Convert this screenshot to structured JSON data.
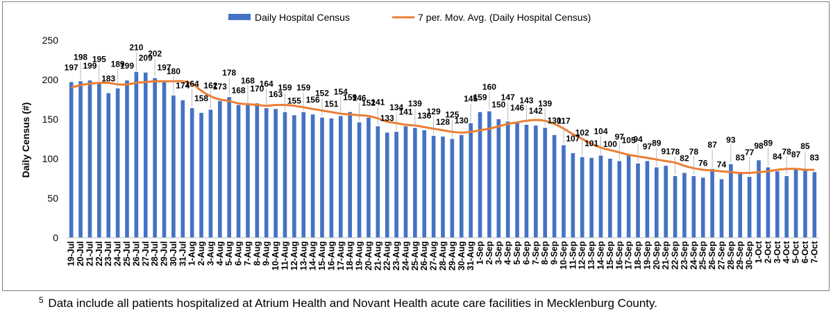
{
  "chart_data": {
    "type": "bar",
    "title": "",
    "xlabel": "",
    "ylabel": "Daily Census (#)",
    "ylim": [
      0,
      250
    ],
    "yticks": [
      0,
      50,
      100,
      150,
      200,
      250
    ],
    "grid": false,
    "legend_position": "top",
    "categories": [
      "19-Jul",
      "20-Jul",
      "21-Jul",
      "22-Jul",
      "23-Jul",
      "24-Jul",
      "25-Jul",
      "26-Jul",
      "27-Jul",
      "28-Jul",
      "29-Jul",
      "30-Jul",
      "31-Jul",
      "1-Aug",
      "2-Aug",
      "3-Aug",
      "4-Aug",
      "5-Aug",
      "6-Aug",
      "7-Aug",
      "8-Aug",
      "9-Aug",
      "10-Aug",
      "11-Aug",
      "12-Aug",
      "13-Aug",
      "14-Aug",
      "15-Aug",
      "16-Aug",
      "17-Aug",
      "18-Aug",
      "19-Aug",
      "20-Aug",
      "21-Aug",
      "22-Aug",
      "23-Aug",
      "24-Aug",
      "25-Aug",
      "26-Aug",
      "27-Aug",
      "28-Aug",
      "29-Aug",
      "30-Aug",
      "31-Aug",
      "1-Sep",
      "2-Sep",
      "3-Sep",
      "4-Sep",
      "5-Sep",
      "6-Sep",
      "7-Sep",
      "8-Sep",
      "9-Sep",
      "10-Sep",
      "11-Sep",
      "12-Sep",
      "13-Sep",
      "14-Sep",
      "15-Sep",
      "16-Sep",
      "17-Sep",
      "18-Sep",
      "19-Sep",
      "20-Sep",
      "21-Sep",
      "22-Sep",
      "23-Sep",
      "24-Sep",
      "25-Sep",
      "26-Sep",
      "27-Sep",
      "28-Sep",
      "29-Sep",
      "30-Sep",
      "1-Oct",
      "2-Oct",
      "3-Oct",
      "4-Oct",
      "5-Oct",
      "6-Oct",
      "7-Oct"
    ],
    "series": [
      {
        "name": "Daily Hospital Census",
        "kind": "bar",
        "color": "#4472C4",
        "values": [
          197,
          198,
          199,
          195,
          183,
          189,
          199,
          210,
          209,
          202,
          197,
          180,
          174,
          164,
          158,
          162,
          173,
          178,
          168,
          168,
          170,
          164,
          163,
          159,
          155,
          159,
          156,
          152,
          151,
          154,
          159,
          146,
          152,
          141,
          133,
          134,
          141,
          139,
          136,
          129,
          128,
          125,
          130,
          145,
          159,
          160,
          150,
          147,
          146,
          143,
          142,
          139,
          130,
          117,
          107,
          102,
          101,
          104,
          100,
          97,
          105,
          94,
          97,
          89,
          91,
          78,
          82,
          78,
          76,
          87,
          74,
          93,
          83,
          77,
          98,
          89,
          84,
          78,
          87,
          85,
          83
        ]
      },
      {
        "name": "7 per. Mov. Avg. (Daily Hospital Census)",
        "kind": "line",
        "color": "#ED7D31",
        "values": [
          190,
          193,
          195,
          196,
          196,
          194,
          194,
          196,
          197,
          198,
          198,
          198,
          198,
          195,
          186,
          179,
          175,
          173,
          170,
          169,
          168,
          167,
          168,
          168,
          167,
          165,
          163,
          161,
          159,
          157,
          156,
          155,
          154,
          151,
          147,
          145,
          143,
          142,
          140,
          138,
          136,
          134,
          133,
          134,
          136,
          138,
          141,
          144,
          146,
          148,
          149,
          148,
          144,
          138,
          131,
          125,
          119,
          114,
          111,
          108,
          105,
          103,
          101,
          99,
          97,
          95,
          91,
          88,
          86,
          85,
          84,
          83,
          82,
          82,
          83,
          84,
          86,
          87,
          87,
          86,
          86
        ]
      }
    ]
  },
  "footnote": {
    "marker": "5",
    "text": " Data include all patients hospitalized at Atrium Health and Novant Health acute care facilities in Mecklenburg County."
  }
}
